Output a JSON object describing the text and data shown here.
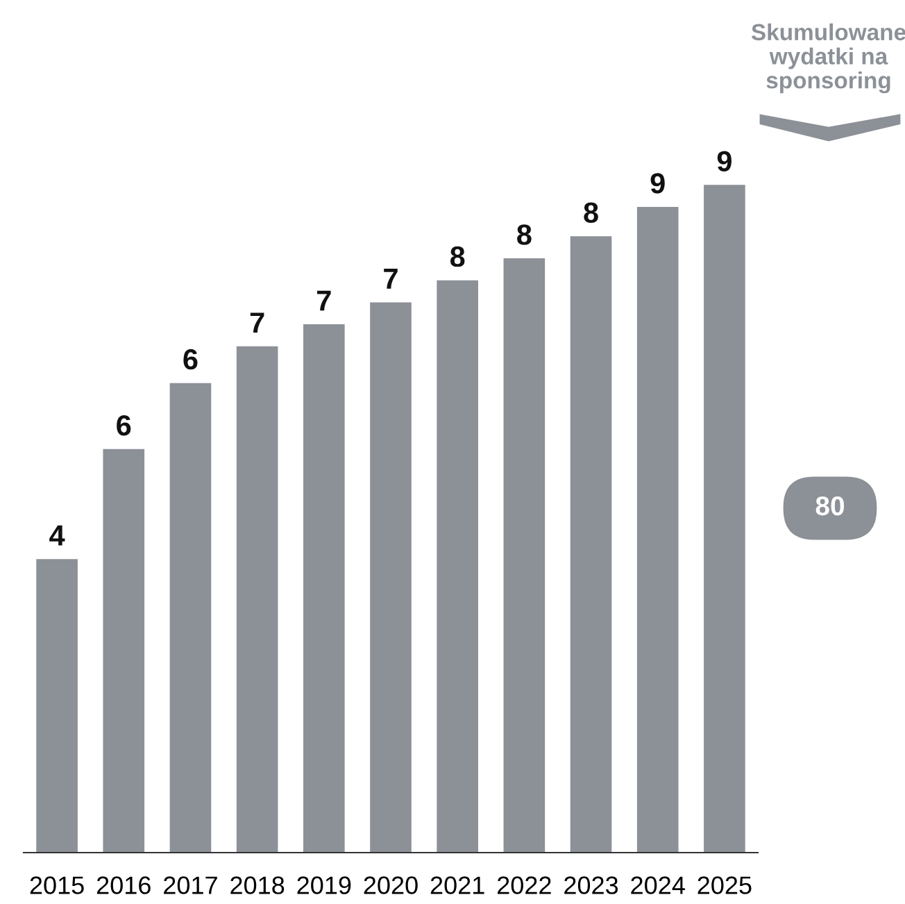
{
  "chart_data": {
    "type": "bar",
    "categories": [
      "2015",
      "2016",
      "2017",
      "2018",
      "2019",
      "2020",
      "2021",
      "2022",
      "2023",
      "2024",
      "2025"
    ],
    "values": [
      4.0,
      5.5,
      6.4,
      6.9,
      7.2,
      7.5,
      7.8,
      8.1,
      8.4,
      8.8,
      9.1
    ],
    "value_labels": [
      "4",
      "6",
      "6",
      "7",
      "7",
      "7",
      "8",
      "8",
      "8",
      "9",
      "9"
    ],
    "color": "#8c9097",
    "annotations": [
      "Skumulowane\nwydatki na\nsponsoring",
      "80"
    ],
    "grid": false,
    "legend": false
  }
}
